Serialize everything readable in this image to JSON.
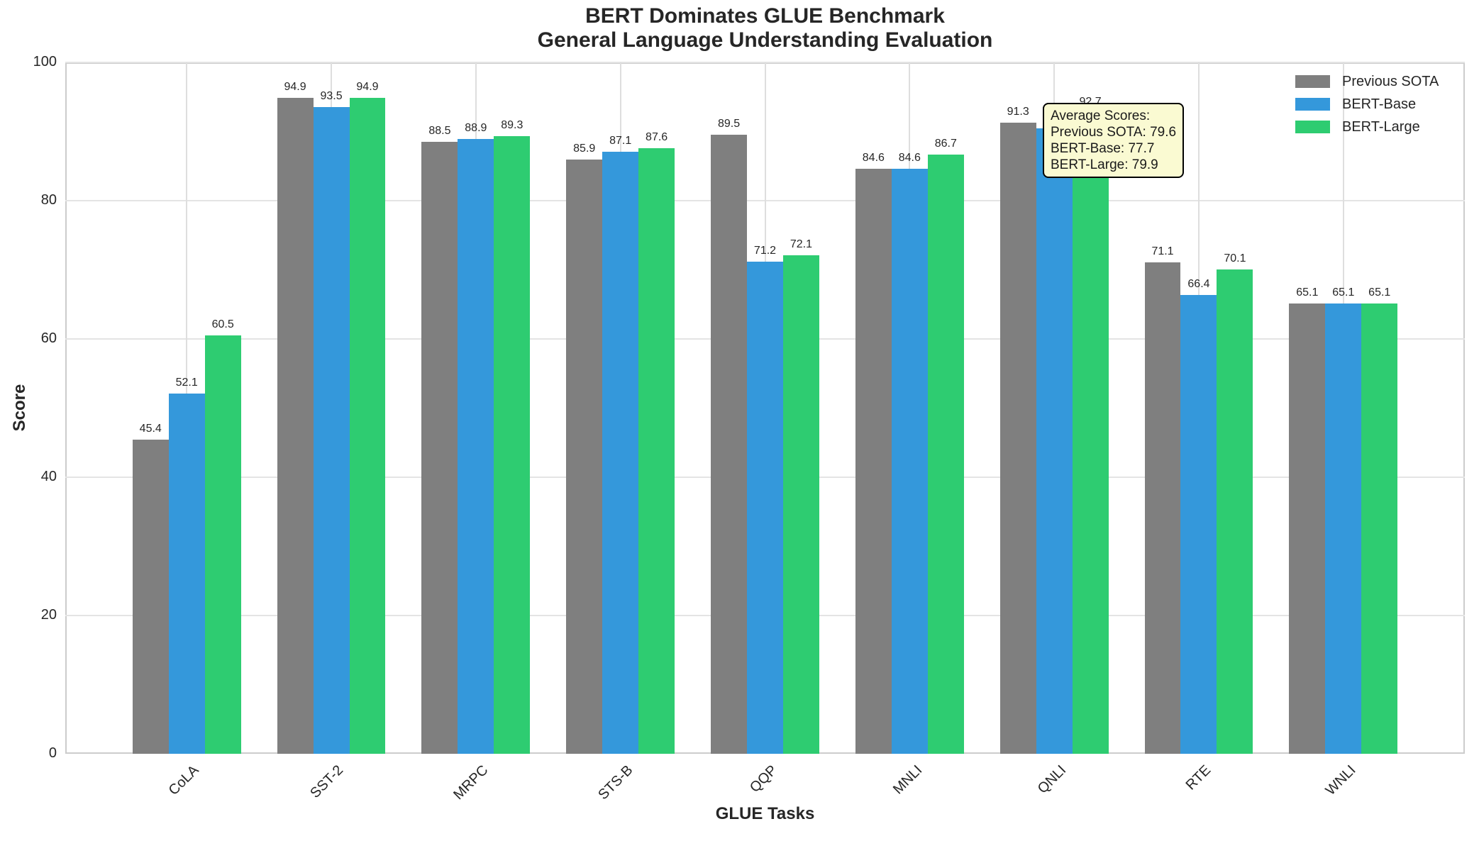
{
  "chart_data": {
    "type": "bar",
    "title": "BERT Dominates GLUE Benchmark",
    "subtitle": "General Language Understanding Evaluation",
    "xlabel": "GLUE Tasks",
    "ylabel": "Score",
    "ylim": [
      0,
      100
    ],
    "yticks": [
      0,
      20,
      40,
      60,
      80,
      100
    ],
    "grid": true,
    "legend_position": "upper right",
    "categories": [
      "CoLA",
      "SST-2",
      "MRPC",
      "STS-B",
      "QQP",
      "MNLI",
      "QNLI",
      "RTE",
      "WNLI"
    ],
    "series": [
      {
        "name": "Previous SOTA",
        "color": "#7f7f7f",
        "values": [
          45.4,
          94.9,
          88.5,
          85.9,
          89.5,
          84.6,
          91.3,
          71.1,
          65.1
        ]
      },
      {
        "name": "BERT-Base",
        "color": "#3498db",
        "values": [
          52.1,
          93.5,
          88.9,
          87.1,
          71.2,
          84.6,
          90.5,
          66.4,
          65.1
        ]
      },
      {
        "name": "BERT-Large",
        "color": "#2ecc71",
        "values": [
          60.5,
          94.9,
          89.3,
          87.6,
          72.1,
          86.7,
          92.7,
          70.1,
          65.1
        ]
      }
    ],
    "bar_labels_visible": true,
    "occluded_bar_label": {
      "category": "QNLI",
      "series": "BERT-Base",
      "note": "label hidden behind annotation box"
    },
    "annotation": {
      "lines": [
        "Average Scores:",
        "Previous SOTA: 79.6",
        "BERT-Base: 77.7",
        "BERT-Large: 79.9"
      ],
      "background": "#fafad2",
      "border_color": "#000000"
    }
  }
}
